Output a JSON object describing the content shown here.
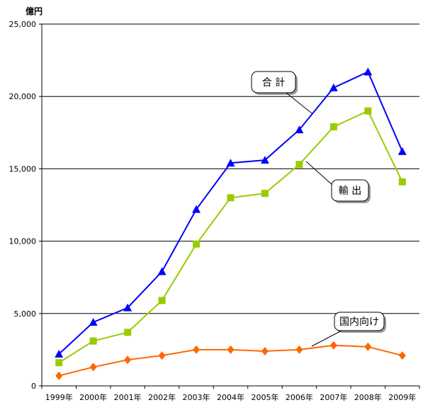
{
  "chart_data": {
    "type": "line",
    "categories": [
      "1999年",
      "2000年",
      "2001年",
      "2002年",
      "2003年",
      "2004年",
      "2005年",
      "2006年",
      "2007年",
      "2008年",
      "2009年"
    ],
    "y_unit": "億円",
    "ylim": [
      0,
      25000
    ],
    "yticks": [
      0,
      5000,
      10000,
      15000,
      20000,
      25000
    ],
    "ytick_labels": [
      "0",
      "5,000",
      "10,000",
      "15,000",
      "20,000",
      "25,000"
    ],
    "grid": true,
    "series": [
      {
        "name": "合 計",
        "color": "#0000ff",
        "marker": "triangle",
        "values": [
          2200,
          4400,
          5400,
          7900,
          12200,
          15400,
          15600,
          17700,
          20600,
          21700,
          16200
        ]
      },
      {
        "name": "輸 出",
        "color": "#99cc00",
        "marker": "square",
        "values": [
          1600,
          3100,
          3700,
          5900,
          9800,
          13000,
          13300,
          15300,
          17900,
          19000,
          14100
        ]
      },
      {
        "name": "国内向け",
        "color": "#ff6600",
        "marker": "diamond",
        "values": [
          700,
          1300,
          1800,
          2100,
          2500,
          2500,
          2400,
          2500,
          2800,
          2700,
          2100
        ]
      }
    ]
  }
}
